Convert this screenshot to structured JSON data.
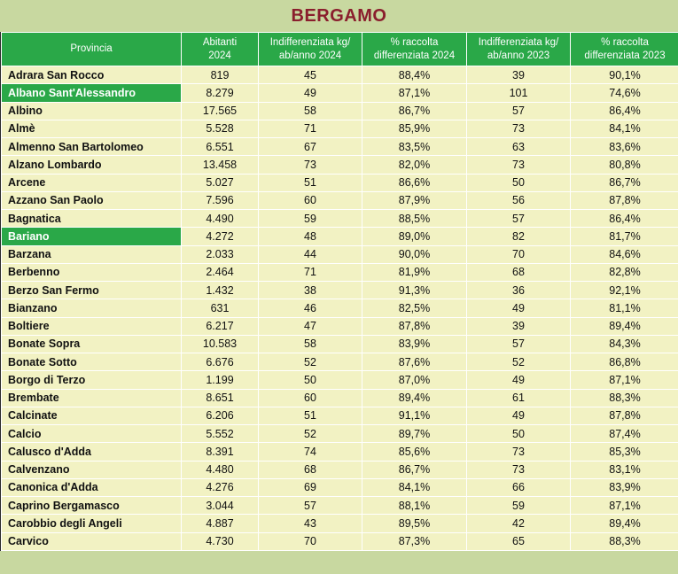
{
  "title": "BERGAMO",
  "colors": {
    "header_green": "#2aa848",
    "highlight_green": "#2aa848",
    "row_yellow": "#f2f2c3",
    "title_bg": "#c8d8a0",
    "title_text": "#8a1e2d",
    "text_dark": "#111111"
  },
  "chart_data": {
    "type": "table",
    "title": "BERGAMO",
    "columns": [
      {
        "key": "provincia",
        "label": "Provincia",
        "lines": [
          "Provincia"
        ]
      },
      {
        "key": "abitanti",
        "label": "Abitanti 2024",
        "lines": [
          "Abitanti",
          "2024"
        ]
      },
      {
        "key": "indiff_2024",
        "label": "Indifferenziata kg/ab/anno 2024",
        "lines": [
          "Indifferenziata kg/",
          "ab/anno 2024"
        ]
      },
      {
        "key": "diff_2024",
        "label": "% raccolta differenziata 2024",
        "lines": [
          "% raccolta",
          "differenziata 2024"
        ]
      },
      {
        "key": "indiff_2023",
        "label": "Indifferenziata kg/ab/anno 2023",
        "lines": [
          "Indifferenziata kg/",
          "ab/anno 2023"
        ]
      },
      {
        "key": "diff_2023",
        "label": "% raccolta differenziata 2023",
        "lines": [
          "% raccolta",
          "differenziata 2023"
        ]
      }
    ],
    "highlighted_rows": [
      "Albano Sant'Alessandro",
      "Bariano"
    ],
    "rows": [
      {
        "provincia": "Adrara San Rocco",
        "abitanti": "819",
        "indiff_2024": "45",
        "diff_2024": "88,4%",
        "indiff_2023": "39",
        "diff_2023": "90,1%",
        "highlight": false
      },
      {
        "provincia": "Albano Sant'Alessandro",
        "abitanti": "8.279",
        "indiff_2024": "49",
        "diff_2024": "87,1%",
        "indiff_2023": "101",
        "diff_2023": "74,6%",
        "highlight": true
      },
      {
        "provincia": "Albino",
        "abitanti": "17.565",
        "indiff_2024": "58",
        "diff_2024": "86,7%",
        "indiff_2023": "57",
        "diff_2023": "86,4%",
        "highlight": false
      },
      {
        "provincia": "Almè",
        "abitanti": "5.528",
        "indiff_2024": "71",
        "diff_2024": "85,9%",
        "indiff_2023": "73",
        "diff_2023": "84,1%",
        "highlight": false
      },
      {
        "provincia": "Almenno San Bartolomeo",
        "abitanti": "6.551",
        "indiff_2024": "67",
        "diff_2024": "83,5%",
        "indiff_2023": "63",
        "diff_2023": "83,6%",
        "highlight": false
      },
      {
        "provincia": "Alzano Lombardo",
        "abitanti": "13.458",
        "indiff_2024": "73",
        "diff_2024": "82,0%",
        "indiff_2023": "73",
        "diff_2023": "80,8%",
        "highlight": false
      },
      {
        "provincia": "Arcene",
        "abitanti": "5.027",
        "indiff_2024": "51",
        "diff_2024": "86,6%",
        "indiff_2023": "50",
        "diff_2023": "86,7%",
        "highlight": false
      },
      {
        "provincia": "Azzano San Paolo",
        "abitanti": "7.596",
        "indiff_2024": "60",
        "diff_2024": "87,9%",
        "indiff_2023": "56",
        "diff_2023": "87,8%",
        "highlight": false
      },
      {
        "provincia": "Bagnatica",
        "abitanti": "4.490",
        "indiff_2024": "59",
        "diff_2024": "88,5%",
        "indiff_2023": "57",
        "diff_2023": "86,4%",
        "highlight": false
      },
      {
        "provincia": "Bariano",
        "abitanti": "4.272",
        "indiff_2024": "48",
        "diff_2024": "89,0%",
        "indiff_2023": "82",
        "diff_2023": "81,7%",
        "highlight": true
      },
      {
        "provincia": "Barzana",
        "abitanti": "2.033",
        "indiff_2024": "44",
        "diff_2024": "90,0%",
        "indiff_2023": "70",
        "diff_2023": "84,6%",
        "highlight": false
      },
      {
        "provincia": "Berbenno",
        "abitanti": "2.464",
        "indiff_2024": "71",
        "diff_2024": "81,9%",
        "indiff_2023": "68",
        "diff_2023": "82,8%",
        "highlight": false
      },
      {
        "provincia": "Berzo San Fermo",
        "abitanti": "1.432",
        "indiff_2024": "38",
        "diff_2024": "91,3%",
        "indiff_2023": "36",
        "diff_2023": "92,1%",
        "highlight": false
      },
      {
        "provincia": "Bianzano",
        "abitanti": "631",
        "indiff_2024": "46",
        "diff_2024": "82,5%",
        "indiff_2023": "49",
        "diff_2023": "81,1%",
        "highlight": false
      },
      {
        "provincia": "Boltiere",
        "abitanti": "6.217",
        "indiff_2024": "47",
        "diff_2024": "87,8%",
        "indiff_2023": "39",
        "diff_2023": "89,4%",
        "highlight": false
      },
      {
        "provincia": "Bonate Sopra",
        "abitanti": "10.583",
        "indiff_2024": "58",
        "diff_2024": "83,9%",
        "indiff_2023": "57",
        "diff_2023": "84,3%",
        "highlight": false
      },
      {
        "provincia": "Bonate Sotto",
        "abitanti": "6.676",
        "indiff_2024": "52",
        "diff_2024": "87,6%",
        "indiff_2023": "52",
        "diff_2023": "86,8%",
        "highlight": false
      },
      {
        "provincia": "Borgo di Terzo",
        "abitanti": "1.199",
        "indiff_2024": "50",
        "diff_2024": "87,0%",
        "indiff_2023": "49",
        "diff_2023": "87,1%",
        "highlight": false
      },
      {
        "provincia": "Brembate",
        "abitanti": "8.651",
        "indiff_2024": "60",
        "diff_2024": "89,4%",
        "indiff_2023": "61",
        "diff_2023": "88,3%",
        "highlight": false
      },
      {
        "provincia": "Calcinate",
        "abitanti": "6.206",
        "indiff_2024": "51",
        "diff_2024": "91,1%",
        "indiff_2023": "49",
        "diff_2023": "87,8%",
        "highlight": false
      },
      {
        "provincia": "Calcio",
        "abitanti": "5.552",
        "indiff_2024": "52",
        "diff_2024": "89,7%",
        "indiff_2023": "50",
        "diff_2023": "87,4%",
        "highlight": false
      },
      {
        "provincia": "Calusco d'Adda",
        "abitanti": "8.391",
        "indiff_2024": "74",
        "diff_2024": "85,6%",
        "indiff_2023": "73",
        "diff_2023": "85,3%",
        "highlight": false
      },
      {
        "provincia": "Calvenzano",
        "abitanti": "4.480",
        "indiff_2024": "68",
        "diff_2024": "86,7%",
        "indiff_2023": "73",
        "diff_2023": "83,1%",
        "highlight": false
      },
      {
        "provincia": "Canonica d'Adda",
        "abitanti": "4.276",
        "indiff_2024": "69",
        "diff_2024": "84,1%",
        "indiff_2023": "66",
        "diff_2023": "83,9%",
        "highlight": false
      },
      {
        "provincia": "Caprino Bergamasco",
        "abitanti": "3.044",
        "indiff_2024": "57",
        "diff_2024": "88,1%",
        "indiff_2023": "59",
        "diff_2023": "87,1%",
        "highlight": false
      },
      {
        "provincia": "Carobbio degli Angeli",
        "abitanti": "4.887",
        "indiff_2024": "43",
        "diff_2024": "89,5%",
        "indiff_2023": "42",
        "diff_2023": "89,4%",
        "highlight": false
      },
      {
        "provincia": "Carvico",
        "abitanti": "4.730",
        "indiff_2024": "70",
        "diff_2024": "87,3%",
        "indiff_2023": "65",
        "diff_2023": "88,3%",
        "highlight": false
      }
    ]
  }
}
